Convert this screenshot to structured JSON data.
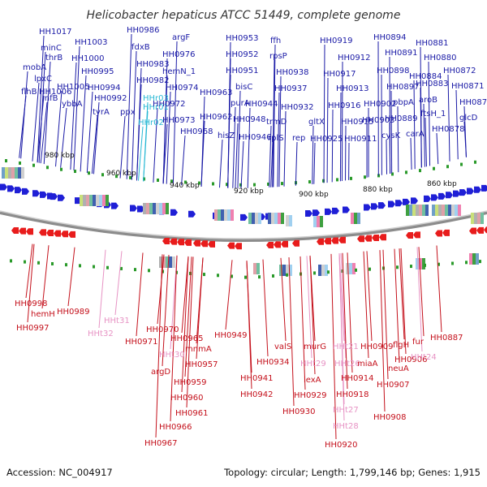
{
  "title": "Helicobacter hepaticus ATCC 51449, complete genome",
  "footer": {
    "accession": "Accession: NC_004917",
    "summary": "Topology: circular; Length: 1,799,146 bp; Genes: 1,915"
  },
  "scale_labels": [
    "980 kbp",
    "960 kbp",
    "940 kbp",
    "920 kbp",
    "900 kbp",
    "880 kbp",
    "860 kbp"
  ],
  "colors": {
    "forward_gene": "#1a1aa6",
    "reverse_gene": "#c4101b",
    "forward_rna": "#27b8d4",
    "reverse_rna": "#e793c4",
    "forward_arrow": "#1f1fd6",
    "reverse_arrow": "#e81c1c",
    "backbone": "#8c8c8c"
  },
  "top_labels": [
    "HH1017",
    "minC",
    "thrB",
    "mobA",
    "lpxC",
    "HH1006",
    "flhB",
    "HH1005",
    "infB",
    "HH1003",
    "HH1000",
    "ybbA",
    "HH0995",
    "HH0994",
    "HH0992",
    "tyrA",
    "HH0986",
    "fdxB",
    "HH0983",
    "HH0982",
    "ppx",
    "HHr03",
    "HHr01",
    "HHr02",
    "argF",
    "HH0976",
    "hemN_1",
    "HH0974",
    "HH0972",
    "HH0973",
    "HH0968",
    "HH0963",
    "HH0962",
    "HH0953",
    "HH0952",
    "HH0951",
    "bisC",
    "purA",
    "HH0948",
    "hisZ",
    "HH0946",
    "HH0944",
    "ffh",
    "rpsP",
    "HH0938",
    "HH0937",
    "trmD",
    "HH0932",
    "rplS",
    "rep",
    "HH0919",
    "HH0912",
    "HH0917",
    "HH0913",
    "HH0916",
    "gltX",
    "HH0915",
    "HH0925",
    "HH0911",
    "HH0894",
    "HH0898",
    "HH0891",
    "HH0897",
    "pbpA",
    "HH0902",
    "HH0903",
    "HH0889",
    "cysK",
    "carA",
    "HH0881",
    "HH0880",
    "HH0884",
    "HH0883",
    "aroB",
    "ftsH_1",
    "HH0872",
    "HH0871",
    "HH0878",
    "HH0870",
    "glcD"
  ],
  "bottom_labels": [
    "HH0998",
    "hemH",
    "HH0997",
    "HH0989",
    "HHt31",
    "HHt32",
    "HH0971",
    "HH0970",
    "HH0965",
    "HHt30",
    "mnmA",
    "HH0957",
    "argD",
    "HH0959",
    "HH0960",
    "HH0961",
    "HH0966",
    "HH0967",
    "HH0949",
    "HH0941",
    "HH0934",
    "HH0942",
    "valS",
    "murG",
    "HHt29",
    "lexA",
    "HH0929",
    "HH0930",
    "HHt21",
    "HHt26",
    "HH0914",
    "HH0918",
    "HHt27",
    "HHt28",
    "HH0920",
    "HH0909",
    "miaA",
    "flgH",
    "HH0906",
    "neuA",
    "HH0907",
    "HH0908",
    "fur",
    "HHt24",
    "HH0887"
  ]
}
